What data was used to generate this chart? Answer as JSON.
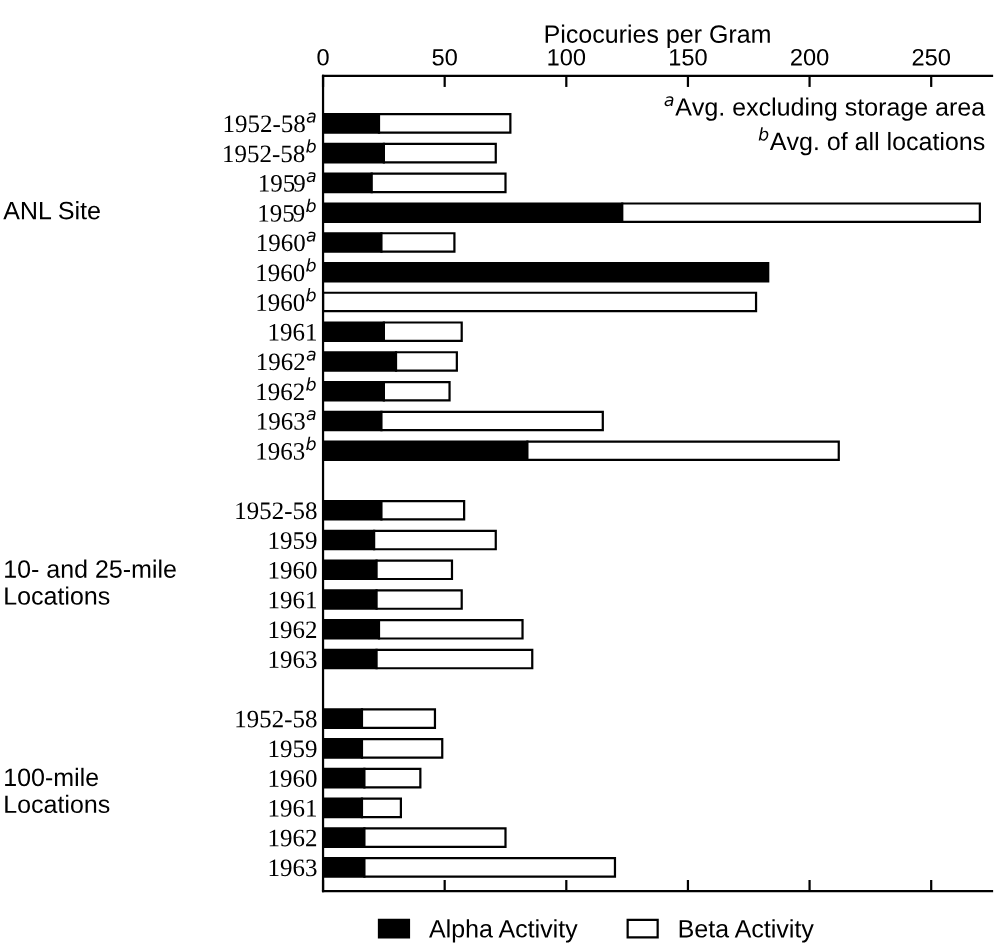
{
  "chart_data": {
    "type": "bar",
    "orientation": "horizontal",
    "stacked": true,
    "xlabel": "Picocuries per Gram",
    "categories": [
      "1952-58$^{a}$",
      "1952-58$^{b}$",
      "1959$^{a}$",
      "1959$^{b}$",
      "1960$^{a}$",
      "1960$^{b}$",
      "1960$^{b}$",
      "1961",
      "1962$^{a}$",
      "1962$^{b}$",
      "1963$^{a}$",
      "1963$^{b}$",
      null,
      "1952-58",
      "1959",
      "1960",
      "1961",
      "1962",
      "1963",
      null,
      "1952-58",
      "1959",
      "1960",
      "1961",
      "1962",
      "1963"
    ],
    "series": [
      {
        "name": "Alpha Activity",
        "color": "#000000",
        "values": [
          23,
          25,
          20,
          123,
          24,
          183,
          null,
          25,
          30,
          25,
          24,
          84,
          null,
          24,
          21,
          22,
          22,
          23,
          22,
          null,
          16,
          16,
          17,
          16,
          17,
          17
        ]
      },
      {
        "name": "Beta Activity",
        "color": "#ffffff",
        "values": [
          54,
          46,
          55,
          147,
          30,
          null,
          178,
          32,
          25,
          27,
          91,
          128,
          null,
          34,
          50,
          31,
          35,
          59,
          64,
          null,
          30,
          33,
          23,
          16,
          58,
          103
        ]
      }
    ],
    "xlim": [
      0,
      275
    ],
    "xticks": [
      0,
      50,
      100,
      150,
      200,
      250
    ],
    "annotations": [
      "ANL Site",
      "10- and 25-mile\nLocations",
      "100-mile\nLocations",
      "$^{a}$Avg. excluding storage area",
      "$^{b}$Avg. of all locations"
    ],
    "legend": "bottom",
    "grid": false
  }
}
